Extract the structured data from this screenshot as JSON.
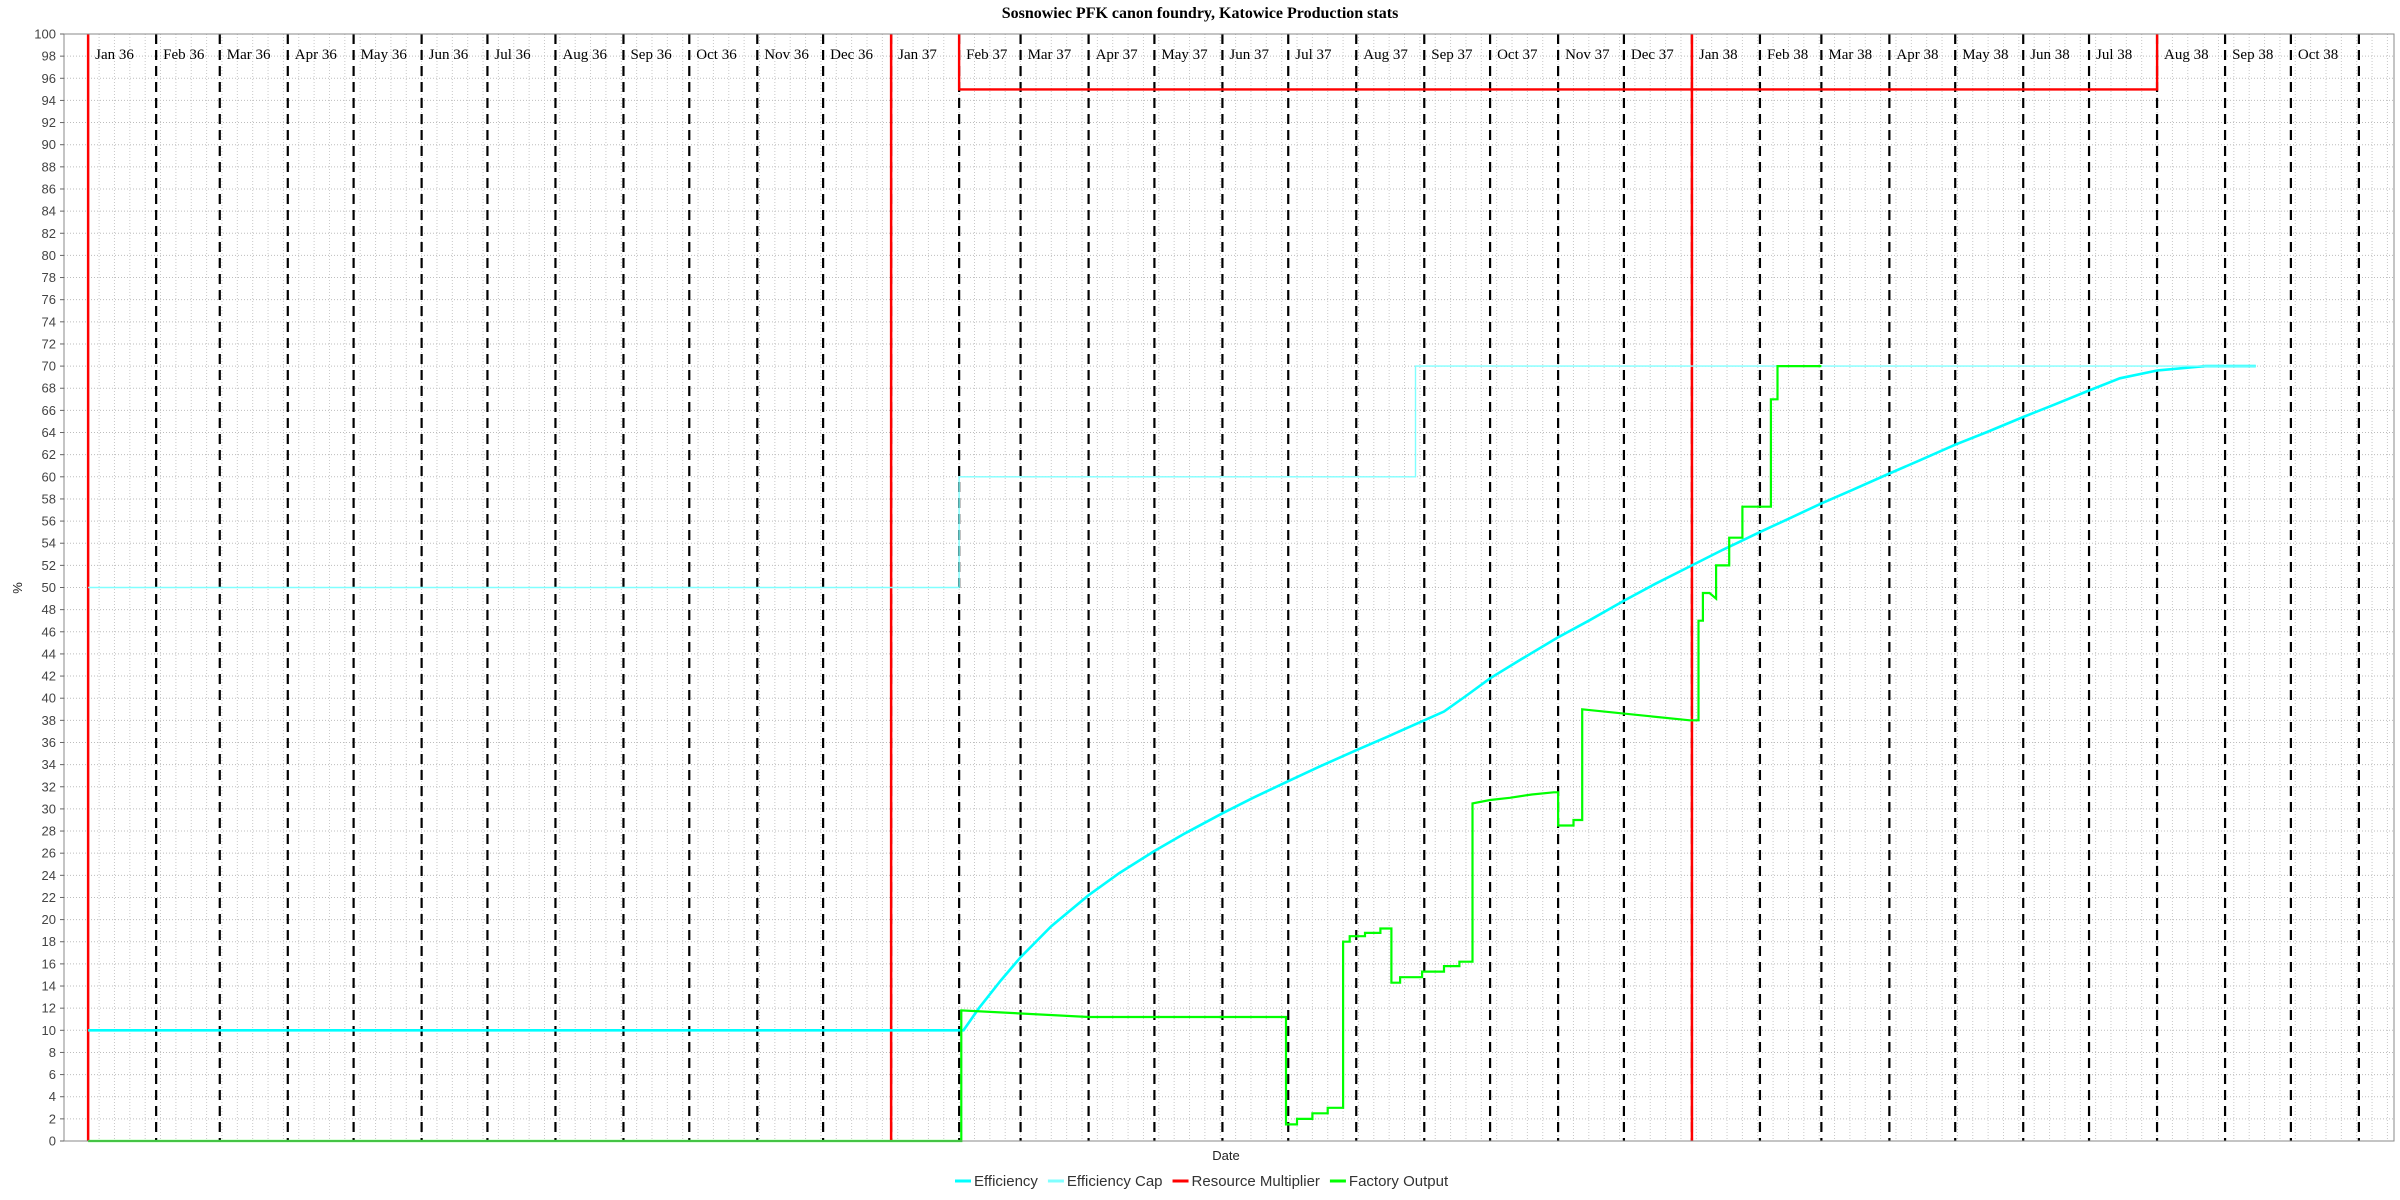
{
  "chart_data": {
    "type": "line",
    "title": "Sosnowiec PFK canon foundry, Katowice Production stats",
    "xlabel": "Date",
    "ylabel": "%",
    "ylim": [
      0,
      100
    ],
    "y_ticks": [
      0,
      2,
      4,
      6,
      8,
      10,
      12,
      14,
      16,
      18,
      20,
      22,
      24,
      26,
      28,
      30,
      32,
      34,
      36,
      38,
      40,
      42,
      44,
      46,
      48,
      50,
      52,
      54,
      56,
      58,
      60,
      62,
      64,
      66,
      68,
      70,
      72,
      74,
      76,
      78,
      80,
      82,
      84,
      86,
      88,
      90,
      92,
      94,
      96,
      98,
      100
    ],
    "x_range": [
      "1935-12-21",
      "1938-11-17"
    ],
    "month_labels": [
      {
        "date": "1936-01-01",
        "label": "Jan 36"
      },
      {
        "date": "1936-02-01",
        "label": "Feb 36"
      },
      {
        "date": "1936-03-01",
        "label": "Mar 36"
      },
      {
        "date": "1936-04-01",
        "label": "Apr 36"
      },
      {
        "date": "1936-05-01",
        "label": "May 36"
      },
      {
        "date": "1936-06-01",
        "label": "Jun 36"
      },
      {
        "date": "1936-07-01",
        "label": "Jul 36"
      },
      {
        "date": "1936-08-01",
        "label": "Aug 36"
      },
      {
        "date": "1936-09-01",
        "label": "Sep 36"
      },
      {
        "date": "1936-10-01",
        "label": "Oct 36"
      },
      {
        "date": "1936-11-01",
        "label": "Nov 36"
      },
      {
        "date": "1936-12-01",
        "label": "Dec 36"
      },
      {
        "date": "1937-01-01",
        "label": "Jan 37"
      },
      {
        "date": "1937-02-01",
        "label": "Feb 37"
      },
      {
        "date": "1937-03-01",
        "label": "Mar 37"
      },
      {
        "date": "1937-04-01",
        "label": "Apr 37"
      },
      {
        "date": "1937-05-01",
        "label": "May 37"
      },
      {
        "date": "1937-06-01",
        "label": "Jun 37"
      },
      {
        "date": "1937-07-01",
        "label": "Jul 37"
      },
      {
        "date": "1937-08-01",
        "label": "Aug 37"
      },
      {
        "date": "1937-09-01",
        "label": "Sep 37"
      },
      {
        "date": "1937-10-01",
        "label": "Oct 37"
      },
      {
        "date": "1937-11-01",
        "label": "Nov 37"
      },
      {
        "date": "1937-12-01",
        "label": "Dec 37"
      },
      {
        "date": "1938-01-01",
        "label": "Jan 38"
      },
      {
        "date": "1938-02-01",
        "label": "Feb 38"
      },
      {
        "date": "1938-03-01",
        "label": "Mar 38"
      },
      {
        "date": "1938-04-01",
        "label": "Apr 38"
      },
      {
        "date": "1938-05-01",
        "label": "May 38"
      },
      {
        "date": "1938-06-01",
        "label": "Jun 38"
      },
      {
        "date": "1938-07-01",
        "label": "Jul 38"
      },
      {
        "date": "1938-08-01",
        "label": "Aug 38"
      },
      {
        "date": "1938-09-01",
        "label": "Sep 38"
      },
      {
        "date": "1938-10-01",
        "label": "Oct 38"
      }
    ],
    "month_markers_dashed": [
      "1936-02-01",
      "1936-03-01",
      "1936-04-01",
      "1936-05-01",
      "1936-06-01",
      "1936-07-01",
      "1936-08-01",
      "1936-09-01",
      "1936-10-01",
      "1936-11-01",
      "1936-12-01",
      "1937-01-01",
      "1937-02-01",
      "1937-03-01",
      "1937-04-01",
      "1937-05-01",
      "1937-06-01",
      "1937-07-01",
      "1937-08-01",
      "1937-09-01",
      "1937-10-01",
      "1937-11-01",
      "1937-12-01",
      "1938-01-01",
      "1938-02-01",
      "1938-03-01",
      "1938-04-01",
      "1938-05-01",
      "1938-06-01",
      "1938-07-01",
      "1938-08-01",
      "1938-09-01",
      "1938-10-01",
      "1938-11-01"
    ],
    "event_markers_red": [
      "1936-01-01",
      "1937-01-01",
      "1938-01-01"
    ],
    "grid": true,
    "legend_position": "bottom",
    "series": [
      {
        "name": "Efficiency",
        "color": "#00ffff",
        "points": [
          [
            "1936-01-01",
            10
          ],
          [
            "1937-02-03",
            10
          ],
          [
            "1937-02-10",
            12
          ],
          [
            "1937-02-20",
            14.5
          ],
          [
            "1937-03-01",
            16.6
          ],
          [
            "1937-03-15",
            19.4
          ],
          [
            "1937-04-01",
            22.2
          ],
          [
            "1937-04-15",
            24.2
          ],
          [
            "1937-05-01",
            26.2
          ],
          [
            "1937-05-15",
            27.8
          ],
          [
            "1937-06-01",
            29.6
          ],
          [
            "1937-06-15",
            31
          ],
          [
            "1937-07-01",
            32.5
          ],
          [
            "1937-07-15",
            33.8
          ],
          [
            "1937-08-01",
            35.3
          ],
          [
            "1937-08-15",
            36.5
          ],
          [
            "1937-09-01",
            38
          ],
          [
            "1937-09-10",
            38.8
          ],
          [
            "1937-09-20",
            40.2
          ],
          [
            "1937-10-01",
            41.8
          ],
          [
            "1937-10-15",
            43.5
          ],
          [
            "1937-11-01",
            45.5
          ],
          [
            "1937-11-15",
            47
          ],
          [
            "1937-12-01",
            48.8
          ],
          [
            "1937-12-15",
            50.3
          ],
          [
            "1938-01-01",
            52
          ],
          [
            "1938-01-15",
            53.4
          ],
          [
            "1938-02-01",
            55
          ],
          [
            "1938-02-15",
            56.3
          ],
          [
            "1938-03-01",
            57.6
          ],
          [
            "1938-03-15",
            58.8
          ],
          [
            "1938-04-01",
            60.3
          ],
          [
            "1938-04-15",
            61.5
          ],
          [
            "1938-05-01",
            62.9
          ],
          [
            "1938-05-15",
            64
          ],
          [
            "1938-06-01",
            65.4
          ],
          [
            "1938-06-15",
            66.5
          ],
          [
            "1938-07-01",
            67.8
          ],
          [
            "1938-07-15",
            68.9
          ],
          [
            "1938-08-01",
            69.6
          ],
          [
            "1938-08-23",
            70
          ],
          [
            "1938-09-15",
            70
          ]
        ]
      },
      {
        "name": "Efficiency Cap",
        "color": "#80ffff",
        "points": [
          [
            "1936-01-01",
            50
          ],
          [
            "1937-02-01",
            50
          ],
          [
            "1937-02-01",
            60
          ],
          [
            "1937-08-28",
            60
          ],
          [
            "1937-08-28",
            70
          ],
          [
            "1938-09-15",
            70
          ]
        ]
      },
      {
        "name": "Resource Multiplier",
        "color": "#ff0000",
        "points": [
          [
            "1937-02-01",
            100
          ],
          [
            "1937-02-01",
            95
          ],
          [
            "1938-08-01",
            95
          ],
          [
            "1938-08-01",
            100
          ]
        ]
      },
      {
        "name": "Factory Output",
        "color": "#00ff00",
        "points": [
          [
            "1936-01-01",
            0
          ],
          [
            "1937-02-02",
            0
          ],
          [
            "1937-02-02",
            11.8
          ],
          [
            "1937-04-01",
            11.2
          ],
          [
            "1937-06-30",
            11.2
          ],
          [
            "1937-06-30",
            1.5
          ],
          [
            "1937-07-05",
            1.5
          ],
          [
            "1937-07-05",
            2
          ],
          [
            "1937-07-12",
            2
          ],
          [
            "1937-07-12",
            2.5
          ],
          [
            "1937-07-19",
            2.5
          ],
          [
            "1937-07-19",
            3
          ],
          [
            "1937-07-26",
            3
          ],
          [
            "1937-07-26",
            18
          ],
          [
            "1937-07-29",
            18
          ],
          [
            "1937-07-29",
            18.5
          ],
          [
            "1937-08-05",
            18.5
          ],
          [
            "1937-08-05",
            18.8
          ],
          [
            "1937-08-12",
            18.8
          ],
          [
            "1937-08-12",
            19.2
          ],
          [
            "1937-08-17",
            19.2
          ],
          [
            "1937-08-17",
            14.3
          ],
          [
            "1937-08-21",
            14.3
          ],
          [
            "1937-08-21",
            14.8
          ],
          [
            "1937-08-31",
            14.8
          ],
          [
            "1937-08-31",
            15.3
          ],
          [
            "1937-09-10",
            15.3
          ],
          [
            "1937-09-10",
            15.8
          ],
          [
            "1937-09-17",
            15.8
          ],
          [
            "1937-09-17",
            16.2
          ],
          [
            "1937-09-23",
            16.2
          ],
          [
            "1937-09-23",
            30.5
          ],
          [
            "1937-10-01",
            30.8
          ],
          [
            "1937-10-10",
            31
          ],
          [
            "1937-10-20",
            31.3
          ],
          [
            "1937-10-30",
            31.5
          ],
          [
            "1937-11-01",
            31.5
          ],
          [
            "1937-11-01",
            28.5
          ],
          [
            "1937-11-08",
            28.5
          ],
          [
            "1937-11-08",
            29
          ],
          [
            "1937-11-12",
            29
          ],
          [
            "1937-11-12",
            39
          ],
          [
            "1937-12-31",
            38
          ],
          [
            "1938-01-04",
            38
          ],
          [
            "1938-01-04",
            47
          ],
          [
            "1938-01-06",
            47
          ],
          [
            "1938-01-06",
            49.5
          ],
          [
            "1938-01-09",
            49.5
          ],
          [
            "1938-01-12",
            49
          ],
          [
            "1938-01-12",
            52
          ],
          [
            "1938-01-18",
            52
          ],
          [
            "1938-01-18",
            54.5
          ],
          [
            "1938-01-24",
            54.5
          ],
          [
            "1938-01-24",
            57.3
          ],
          [
            "1938-02-06",
            57.3
          ],
          [
            "1938-02-06",
            67
          ],
          [
            "1938-02-09",
            67
          ],
          [
            "1938-02-09",
            70
          ],
          [
            "1938-03-01",
            70
          ]
        ]
      }
    ]
  }
}
